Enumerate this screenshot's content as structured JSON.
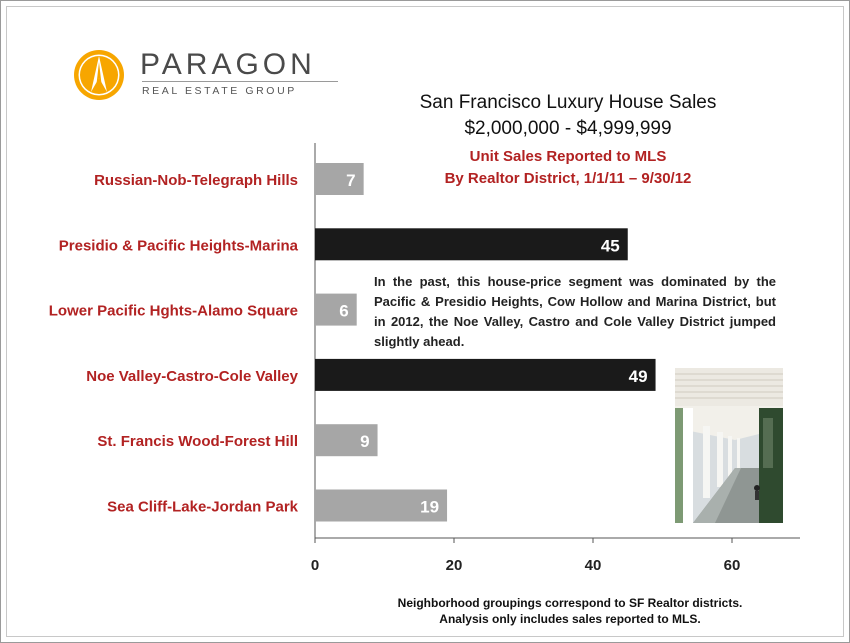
{
  "logo": {
    "name": "PARAGON",
    "tagline": "REAL ESTATE GROUP"
  },
  "titles": {
    "line1": "San Francisco Luxury House Sales",
    "line2": "$2,000,000 - $4,999,999",
    "line3": "Unit Sales Reported to MLS",
    "line4": "By Realtor District, 1/1/11 – 9/30/12"
  },
  "note": "In the past, this house-price segment was dominated by the Pacific & Presidio Heights, Cow Hollow and Marina District, but in 2012, the Noe Valley, Castro and Cole Valley District jumped slightly ahead.",
  "footnote": {
    "line1": "Neighborhood groupings correspond to SF Realtor districts.",
    "line2": "Analysis only includes sales reported to MLS."
  },
  "colors": {
    "bar_gray": "#a6a6a6",
    "bar_black": "#1a1a1a",
    "category_label": "#b22222",
    "logo_orange": "#f7a600"
  },
  "chart_data": {
    "type": "bar",
    "orientation": "horizontal",
    "categories": [
      "Russian-Nob-Telegraph Hills",
      "Presidio & Pacific Heights-Marina",
      "Lower Pacific Hghts-Alamo Square",
      "Noe Valley-Castro-Cole Valley",
      "St. Francis Wood-Forest Hill",
      "Sea Cliff-Lake-Jordan Park"
    ],
    "values": [
      7,
      45,
      6,
      49,
      9,
      19
    ],
    "highlighted": [
      false,
      true,
      false,
      true,
      false,
      false
    ],
    "xticks": [
      "0",
      "20",
      "40",
      "60"
    ],
    "xlim": [
      0,
      70
    ],
    "title": "San Francisco Luxury House Sales",
    "subtitle": "$2,000,000 - $4,999,999",
    "xlabel": "",
    "ylabel": "",
    "grid": false
  }
}
